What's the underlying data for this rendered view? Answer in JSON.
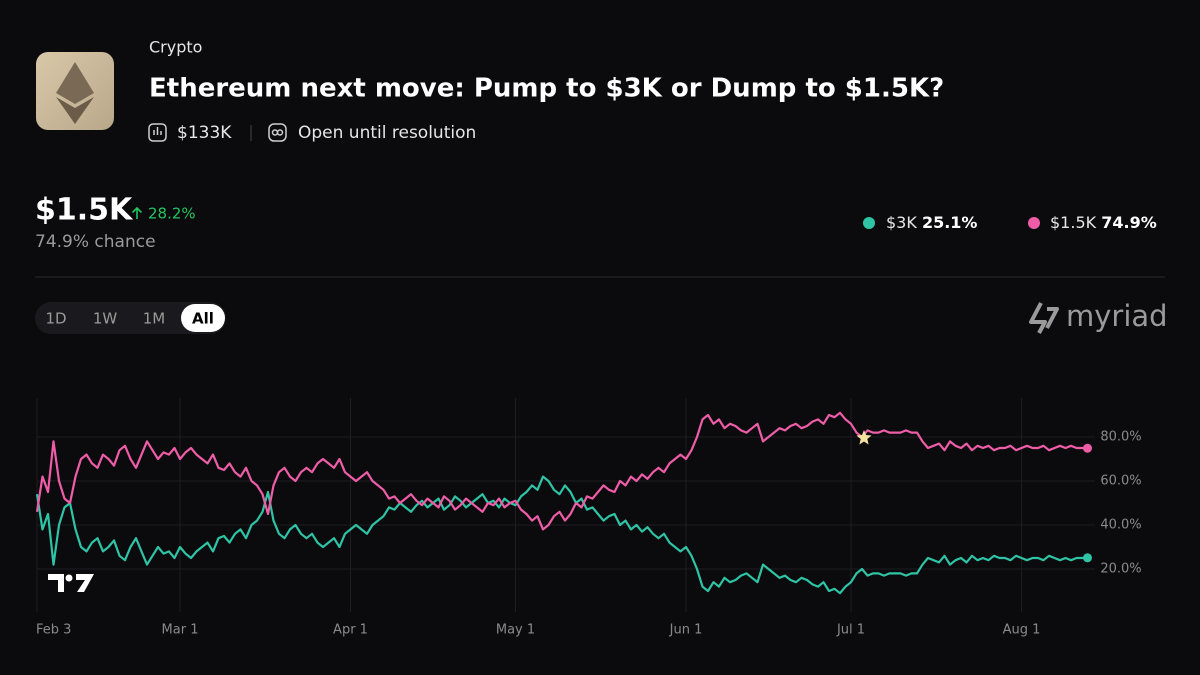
{
  "header": {
    "category": "Crypto",
    "title": "Ethereum next move: Pump to $3K or Dump to $1.5K?",
    "volume": "$133K",
    "status": "Open until resolution"
  },
  "summary": {
    "change": "28.2%",
    "chance": "74.9% chance"
  },
  "range_buttons": [
    "1D",
    "1W",
    "1M",
    "All"
  ],
  "selected_range": 3,
  "brand": "myriad",
  "chart_data": {
    "type": "line",
    "x": [
      "Feb 3",
      "Feb 4",
      "Feb 5",
      "Feb 6",
      "Feb 7",
      "Feb 8",
      "Feb 9",
      "Feb 10",
      "Feb 11",
      "Feb 12",
      "Feb 13",
      "Feb 14",
      "Feb 15",
      "Feb 16",
      "Feb 17",
      "Feb 18",
      "Feb 19",
      "Feb 20",
      "Feb 21",
      "Feb 22",
      "Feb 23",
      "Feb 24",
      "Feb 25",
      "Feb 26",
      "Feb 27",
      "Feb 28",
      "Mar 1",
      "Mar 2",
      "Mar 3",
      "Mar 4",
      "Mar 5",
      "Mar 6",
      "Mar 7",
      "Mar 8",
      "Mar 9",
      "Mar 10",
      "Mar 11",
      "Mar 12",
      "Mar 13",
      "Mar 14",
      "Mar 15",
      "Mar 16",
      "Mar 17",
      "Mar 18",
      "Mar 19",
      "Mar 20",
      "Mar 21",
      "Mar 22",
      "Mar 23",
      "Mar 24",
      "Mar 25",
      "Mar 26",
      "Mar 27",
      "Mar 28",
      "Mar 29",
      "Mar 30",
      "Mar 31",
      "Apr 1",
      "Apr 2",
      "Apr 3",
      "Apr 4",
      "Apr 5",
      "Apr 6",
      "Apr 7",
      "Apr 8",
      "Apr 9",
      "Apr 10",
      "Apr 11",
      "Apr 12",
      "Apr 13",
      "Apr 14",
      "Apr 15",
      "Apr 16",
      "Apr 17",
      "Apr 18",
      "Apr 19",
      "Apr 20",
      "Apr 21",
      "Apr 22",
      "Apr 23",
      "Apr 24",
      "Apr 25",
      "Apr 26",
      "Apr 27",
      "Apr 28",
      "Apr 29",
      "Apr 30",
      "May 1",
      "May 2",
      "May 3",
      "May 4",
      "May 5",
      "May 6",
      "May 7",
      "May 8",
      "May 9",
      "May 10",
      "May 11",
      "May 12",
      "May 13",
      "May 14",
      "May 15",
      "May 16",
      "May 17",
      "May 18",
      "May 19",
      "May 20",
      "May 21",
      "May 22",
      "May 23",
      "May 24",
      "May 25",
      "May 26",
      "May 27",
      "May 28",
      "May 29",
      "May 30",
      "May 31",
      "Jun 1",
      "Jun 2",
      "Jun 3",
      "Jun 4",
      "Jun 5",
      "Jun 6",
      "Jun 7",
      "Jun 8",
      "Jun 9",
      "Jun 10",
      "Jun 11",
      "Jun 12",
      "Jun 13",
      "Jun 14",
      "Jun 15",
      "Jun 16",
      "Jun 17",
      "Jun 18",
      "Jun 19",
      "Jun 20",
      "Jun 21",
      "Jun 22",
      "Jun 23",
      "Jun 24",
      "Jun 25",
      "Jun 26",
      "Jun 27",
      "Jun 28",
      "Jun 29",
      "Jun 30",
      "Jul 1",
      "Jul 2",
      "Jul 3",
      "Jul 4",
      "Jul 5",
      "Jul 6",
      "Jul 7",
      "Jul 8",
      "Jul 9",
      "Jul 10",
      "Jul 11",
      "Jul 12",
      "Jul 13",
      "Jul 14",
      "Jul 15",
      "Jul 16",
      "Jul 17",
      "Jul 18",
      "Jul 19",
      "Jul 20",
      "Jul 21",
      "Jul 22",
      "Jul 23",
      "Jul 24",
      "Jul 25",
      "Jul 26",
      "Jul 27",
      "Jul 28",
      "Jul 29",
      "Jul 30",
      "Jul 31",
      "Aug 1",
      "Aug 2",
      "Aug 3",
      "Aug 4",
      "Aug 5",
      "Aug 6",
      "Aug 7",
      "Aug 8",
      "Aug 9",
      "Aug 10",
      "Aug 11",
      "Aug 12",
      "Aug 13"
    ],
    "series": [
      {
        "name": "$3K",
        "color": "#2ec4a5",
        "current": {
          "value": 25.1,
          "label": "25.1%"
        },
        "values": [
          54,
          38,
          45,
          22,
          40,
          48,
          50,
          38,
          30,
          28,
          32,
          34,
          28,
          30,
          33,
          26,
          24,
          30,
          34,
          28,
          22,
          26,
          30,
          27,
          28,
          25,
          30,
          27,
          25,
          28,
          30,
          32,
          28,
          34,
          35,
          32,
          36,
          38,
          34,
          40,
          42,
          46,
          55,
          42,
          36,
          34,
          38,
          40,
          36,
          34,
          36,
          32,
          30,
          32,
          34,
          30,
          36,
          38,
          40,
          38,
          36,
          40,
          42,
          44,
          48,
          47,
          50,
          48,
          46,
          49,
          51,
          48,
          50,
          52,
          47,
          49,
          53,
          51,
          48,
          50,
          52,
          54,
          50,
          51,
          48,
          52,
          50,
          49,
          53,
          55,
          58,
          56,
          62,
          60,
          56,
          54,
          58,
          55,
          50,
          52,
          47,
          48,
          45,
          42,
          44,
          45,
          40,
          42,
          38,
          40,
          37,
          39,
          36,
          34,
          36,
          32,
          30,
          28,
          30,
          26,
          20,
          12,
          10,
          14,
          12,
          16,
          14,
          15,
          17,
          18,
          16,
          14,
          22,
          20,
          18,
          16,
          17,
          15,
          14,
          16,
          15,
          13,
          12,
          14,
          10,
          11,
          9,
          12,
          14,
          18,
          20,
          17,
          18,
          18,
          17,
          18,
          18,
          18,
          17,
          18,
          18,
          22,
          25,
          24,
          23,
          26,
          22,
          24,
          25,
          23,
          26,
          24,
          25,
          24,
          26,
          25,
          25,
          24,
          26,
          25,
          24,
          25,
          25,
          24,
          26,
          25,
          24,
          25,
          24,
          25,
          25,
          25.1
        ]
      },
      {
        "name": "$1.5K",
        "color": "#ef5da8",
        "current": {
          "value": 74.9,
          "label": "74.9%"
        },
        "values": [
          46,
          62,
          55,
          78,
          60,
          52,
          50,
          62,
          70,
          72,
          68,
          66,
          72,
          70,
          67,
          74,
          76,
          70,
          66,
          72,
          78,
          74,
          70,
          73,
          72,
          75,
          70,
          73,
          75,
          72,
          70,
          68,
          72,
          66,
          65,
          68,
          64,
          62,
          66,
          60,
          58,
          54,
          45,
          58,
          64,
          66,
          62,
          60,
          64,
          66,
          64,
          68,
          70,
          68,
          66,
          70,
          64,
          62,
          60,
          62,
          64,
          60,
          58,
          56,
          52,
          53,
          50,
          52,
          54,
          51,
          49,
          52,
          50,
          48,
          53,
          51,
          47,
          49,
          52,
          50,
          48,
          46,
          50,
          49,
          52,
          48,
          50,
          51,
          47,
          45,
          42,
          44,
          38,
          40,
          44,
          46,
          42,
          45,
          50,
          48,
          53,
          52,
          55,
          58,
          56,
          55,
          60,
          58,
          62,
          60,
          63,
          61,
          64,
          66,
          64,
          68,
          70,
          72,
          70,
          74,
          80,
          88,
          90,
          86,
          88,
          84,
          86,
          85,
          83,
          82,
          84,
          86,
          78,
          80,
          82,
          84,
          83,
          85,
          86,
          84,
          85,
          87,
          88,
          86,
          90,
          89,
          91,
          88,
          86,
          82,
          80,
          83,
          82,
          82,
          83,
          82,
          82,
          82,
          83,
          82,
          82,
          78,
          75,
          76,
          77,
          74,
          78,
          76,
          75,
          77,
          74,
          76,
          75,
          76,
          74,
          75,
          75,
          76,
          74,
          75,
          76,
          75,
          75,
          76,
          74,
          75,
          76,
          75,
          76,
          75,
          75,
          74.9
        ]
      }
    ],
    "xticks": [
      "Feb 3",
      "Mar 1",
      "Apr 1",
      "May 1",
      "Jun 1",
      "Jul 1",
      "Aug 1"
    ],
    "ylim": [
      0,
      100
    ],
    "yticks": [
      {
        "value": 20,
        "label": "20.0%"
      },
      {
        "value": 40,
        "label": "40.0%"
      },
      {
        "value": 60,
        "label": "60.0%"
      },
      {
        "value": 80,
        "label": "80.0%"
      }
    ],
    "grid": true
  }
}
